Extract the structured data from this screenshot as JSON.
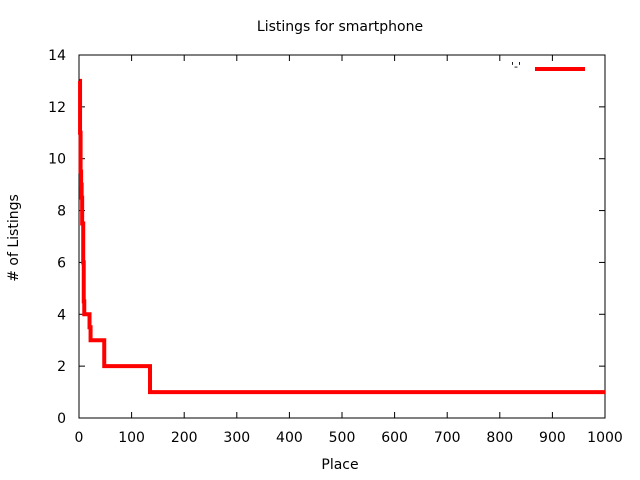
{
  "chart_data": {
    "type": "line",
    "title": "Listings for smartphone",
    "xlabel": "Place",
    "ylabel": "# of Listings",
    "xlim": [
      0,
      1000
    ],
    "ylim": [
      0,
      14
    ],
    "xticks": [
      0,
      100,
      200,
      300,
      400,
      500,
      600,
      700,
      800,
      900,
      1000
    ],
    "yticks": [
      0,
      2,
      4,
      6,
      8,
      10,
      12,
      14
    ],
    "grid": false,
    "legend": {
      "position": "top-right",
      "label": "'-'"
    },
    "series": [
      {
        "color": "#ff0000",
        "step": true,
        "x": [
          1,
          2,
          3,
          4,
          5,
          6,
          7,
          8,
          9,
          10,
          12,
          14,
          18,
          20,
          22,
          25,
          48,
          135,
          1000
        ],
        "values": [
          13,
          11,
          9.5,
          9,
          8.5,
          7.5,
          7.5,
          6,
          4.5,
          4,
          4,
          4,
          4,
          3.5,
          3,
          3,
          2,
          1,
          1
        ]
      }
    ]
  }
}
